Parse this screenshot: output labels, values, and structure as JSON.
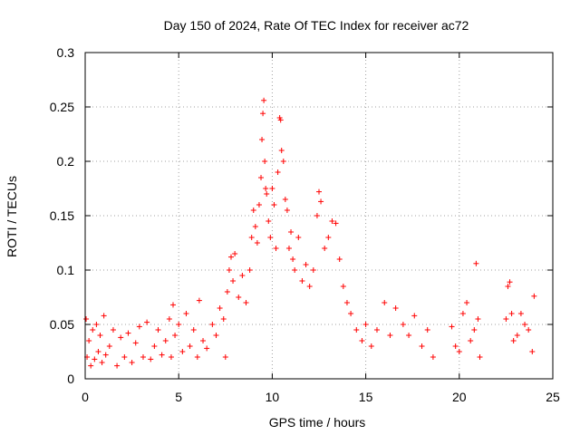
{
  "chart_data": {
    "type": "scatter",
    "title": "Day 150 of 2024, Rate Of TEC Index for receiver ac72",
    "xlabel": "GPS time / hours",
    "ylabel": "ROTI / TECUs",
    "xlim": [
      0,
      25
    ],
    "ylim": [
      0,
      0.3
    ],
    "xticks": [
      "0",
      "5",
      "10",
      "15",
      "20",
      "25"
    ],
    "yticks": [
      "0",
      "0.05",
      "0.1",
      "0.15",
      "0.2",
      "0.25",
      "0.3"
    ],
    "grid": true,
    "marker": "+",
    "color": "#ff0000",
    "series": [
      {
        "points": [
          [
            0.05,
            0.055
          ],
          [
            0.1,
            0.02
          ],
          [
            0.2,
            0.035
          ],
          [
            0.3,
            0.012
          ],
          [
            0.4,
            0.045
          ],
          [
            0.5,
            0.018
          ],
          [
            0.6,
            0.05
          ],
          [
            0.7,
            0.025
          ],
          [
            0.8,
            0.04
          ],
          [
            0.9,
            0.015
          ],
          [
            1.0,
            0.058
          ],
          [
            1.1,
            0.022
          ],
          [
            1.3,
            0.03
          ],
          [
            1.5,
            0.045
          ],
          [
            1.7,
            0.012
          ],
          [
            1.9,
            0.038
          ],
          [
            2.1,
            0.02
          ],
          [
            2.3,
            0.042
          ],
          [
            2.5,
            0.015
          ],
          [
            2.7,
            0.033
          ],
          [
            2.9,
            0.048
          ],
          [
            3.1,
            0.02
          ],
          [
            3.3,
            0.052
          ],
          [
            3.5,
            0.018
          ],
          [
            3.7,
            0.03
          ],
          [
            3.9,
            0.045
          ],
          [
            4.1,
            0.022
          ],
          [
            4.3,
            0.035
          ],
          [
            4.5,
            0.055
          ],
          [
            4.6,
            0.02
          ],
          [
            4.7,
            0.068
          ],
          [
            4.8,
            0.04
          ],
          [
            5.0,
            0.05
          ],
          [
            5.2,
            0.025
          ],
          [
            5.4,
            0.06
          ],
          [
            5.6,
            0.03
          ],
          [
            5.8,
            0.045
          ],
          [
            6.0,
            0.02
          ],
          [
            6.1,
            0.072
          ],
          [
            6.3,
            0.035
          ],
          [
            6.5,
            0.028
          ],
          [
            6.8,
            0.05
          ],
          [
            7.0,
            0.04
          ],
          [
            7.2,
            0.065
          ],
          [
            7.4,
            0.055
          ],
          [
            7.5,
            0.02
          ],
          [
            7.6,
            0.08
          ],
          [
            7.7,
            0.1
          ],
          [
            7.8,
            0.112
          ],
          [
            7.9,
            0.09
          ],
          [
            8.0,
            0.115
          ],
          [
            8.2,
            0.075
          ],
          [
            8.4,
            0.095
          ],
          [
            8.6,
            0.07
          ],
          [
            8.8,
            0.1
          ],
          [
            8.9,
            0.13
          ],
          [
            9.0,
            0.155
          ],
          [
            9.1,
            0.14
          ],
          [
            9.2,
            0.125
          ],
          [
            9.3,
            0.16
          ],
          [
            9.4,
            0.185
          ],
          [
            9.45,
            0.22
          ],
          [
            9.5,
            0.244
          ],
          [
            9.55,
            0.256
          ],
          [
            9.6,
            0.2
          ],
          [
            9.65,
            0.175
          ],
          [
            9.7,
            0.17
          ],
          [
            9.8,
            0.145
          ],
          [
            9.9,
            0.13
          ],
          [
            10.0,
            0.175
          ],
          [
            10.1,
            0.16
          ],
          [
            10.2,
            0.12
          ],
          [
            10.3,
            0.19
          ],
          [
            10.4,
            0.24
          ],
          [
            10.45,
            0.238
          ],
          [
            10.5,
            0.21
          ],
          [
            10.6,
            0.2
          ],
          [
            10.7,
            0.165
          ],
          [
            10.8,
            0.155
          ],
          [
            10.9,
            0.12
          ],
          [
            11.0,
            0.135
          ],
          [
            11.1,
            0.11
          ],
          [
            11.2,
            0.1
          ],
          [
            11.4,
            0.13
          ],
          [
            11.6,
            0.09
          ],
          [
            11.8,
            0.105
          ],
          [
            12.0,
            0.085
          ],
          [
            12.2,
            0.1
          ],
          [
            12.4,
            0.15
          ],
          [
            12.5,
            0.172
          ],
          [
            12.6,
            0.163
          ],
          [
            12.8,
            0.12
          ],
          [
            13.0,
            0.13
          ],
          [
            13.2,
            0.145
          ],
          [
            13.4,
            0.143
          ],
          [
            13.6,
            0.11
          ],
          [
            13.8,
            0.085
          ],
          [
            14.0,
            0.07
          ],
          [
            14.2,
            0.06
          ],
          [
            14.5,
            0.045
          ],
          [
            14.8,
            0.035
          ],
          [
            15.0,
            0.05
          ],
          [
            15.3,
            0.03
          ],
          [
            15.6,
            0.045
          ],
          [
            16.0,
            0.07
          ],
          [
            16.3,
            0.04
          ],
          [
            16.6,
            0.065
          ],
          [
            17.0,
            0.05
          ],
          [
            17.3,
            0.04
          ],
          [
            17.6,
            0.058
          ],
          [
            18.0,
            0.03
          ],
          [
            18.3,
            0.045
          ],
          [
            18.6,
            0.02
          ],
          [
            19.6,
            0.048
          ],
          [
            19.8,
            0.03
          ],
          [
            20.0,
            0.025
          ],
          [
            20.2,
            0.06
          ],
          [
            20.4,
            0.07
          ],
          [
            20.6,
            0.035
          ],
          [
            20.8,
            0.045
          ],
          [
            20.9,
            0.106
          ],
          [
            21.0,
            0.055
          ],
          [
            21.1,
            0.02
          ],
          [
            22.5,
            0.055
          ],
          [
            22.6,
            0.085
          ],
          [
            22.7,
            0.089
          ],
          [
            22.8,
            0.06
          ],
          [
            22.9,
            0.035
          ],
          [
            23.1,
            0.04
          ],
          [
            23.3,
            0.06
          ],
          [
            23.5,
            0.05
          ],
          [
            23.7,
            0.045
          ],
          [
            23.9,
            0.025
          ],
          [
            24.0,
            0.076
          ]
        ]
      }
    ]
  }
}
